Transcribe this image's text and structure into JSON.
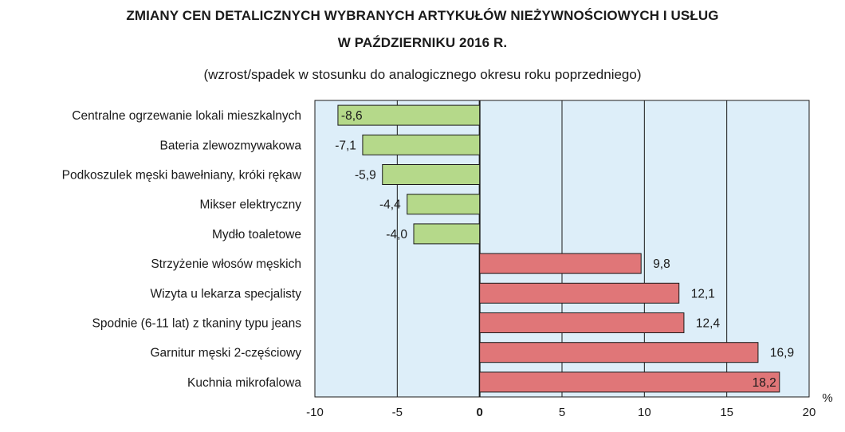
{
  "title_lines": [
    "ZMIANY CEN DETALICZNYCH WYBRANYCH ARTYKUŁÓW NIEŻYWNOŚCIOWYCH I USŁUG",
    "W PAŹDZIERNIKU 2016 R."
  ],
  "subtitle": "(wzrost/spadek w stosunku do analogicznego okresu roku poprzedniego)",
  "colors": {
    "plot_background": "#ddeef9",
    "negative_bar": "#b5d98a",
    "positive_bar": "#e07678",
    "bar_border": "#1a1a1a",
    "grid": "#1a1a1a"
  },
  "chart_data": {
    "type": "bar",
    "orientation": "horizontal",
    "categories": [
      "Centralne ogrzewanie lokali mieszkalnych",
      "Bateria zlewozmywakowa",
      "Podkoszulek męski bawełniany, króki rękaw",
      "Mikser elektryczny",
      "Mydło toaletowe",
      "Strzyżenie włosów męskich",
      "Wizyta u lekarza specjalisty",
      "Spodnie (6-11 lat) z tkaniny typu jeans",
      "Garnitur męski 2-częściowy",
      "Kuchnia mikrofalowa"
    ],
    "values": [
      -8.6,
      -7.1,
      -5.9,
      -4.4,
      -4.0,
      9.8,
      12.1,
      12.4,
      16.9,
      18.2
    ],
    "value_labels": [
      "-8,6",
      "-7,1",
      "-5,9",
      "-4,4",
      "-4,0",
      "9,8",
      "12,1",
      "12,4",
      "16,9",
      "18,2"
    ],
    "x_ticks": [
      -10,
      -5,
      0,
      5,
      10,
      15,
      20
    ],
    "x_tick_labels": [
      "-10",
      "-5",
      "0",
      "5",
      "10",
      "15",
      "20"
    ],
    "xlim": [
      -10,
      20
    ],
    "x_unit": "%",
    "grid": true
  }
}
